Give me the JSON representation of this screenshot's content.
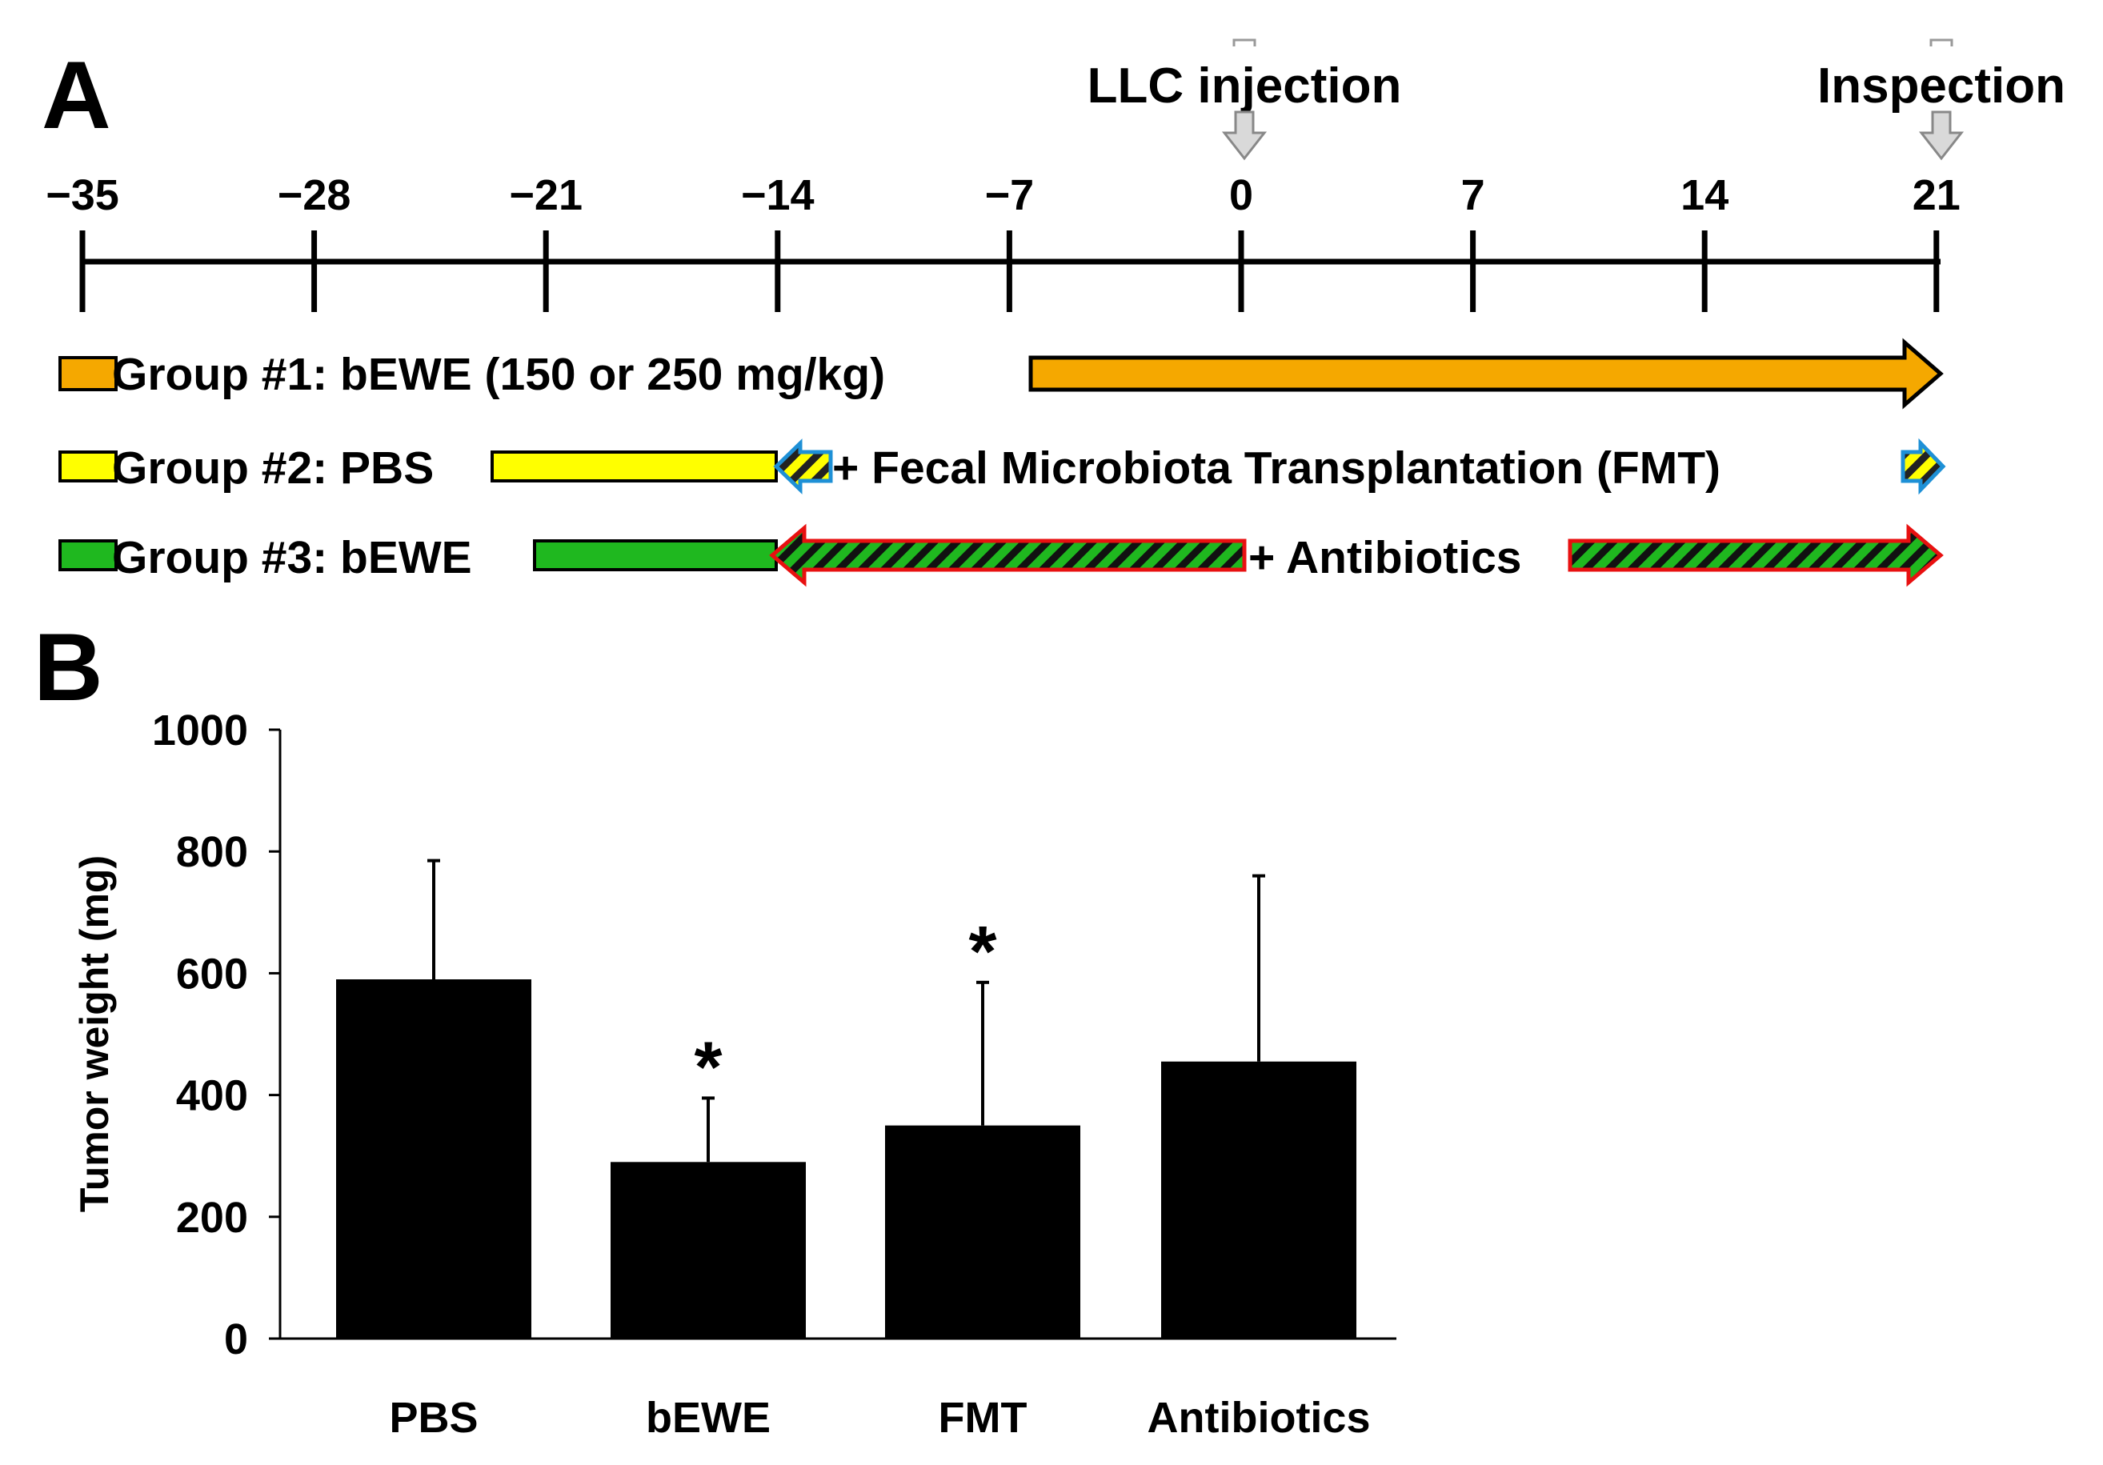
{
  "panel_a": {
    "label": "A",
    "ticks": [
      "−35",
      "−28",
      "−21",
      "−14",
      "−7",
      "0",
      "7",
      "14",
      "21"
    ],
    "events": {
      "injection": "LLC injection",
      "inspection": "Inspection"
    },
    "groups": {
      "g1": "Group #1: bEWE (150 or 250 mg/kg)",
      "g2": "Group #2: PBS",
      "g2_extra": "+ Fecal Microbiota Transplantation (FMT)",
      "g3": "Group #3: bEWE",
      "g3_extra": "+ Antibiotics"
    },
    "colors": {
      "group1": "#f5a800",
      "group2": "#ffff00",
      "group2_outline": "#1e90d6",
      "group3": "#1fb81f",
      "group3_outline": "#e81010",
      "event_arrow": "#d9d9d9"
    }
  },
  "panel_b": {
    "label": "B"
  },
  "chart_data": {
    "type": "bar",
    "categories": [
      "PBS",
      "bEWE",
      "FMT",
      "Antibiotics"
    ],
    "values": [
      590,
      290,
      350,
      455
    ],
    "error_upper": [
      785,
      395,
      585,
      760
    ],
    "significant": [
      false,
      true,
      true,
      false
    ],
    "significance_mark": "*",
    "ylabel": "Tumor weight (mg)",
    "ylim": [
      0,
      1000
    ],
    "yticks": [
      0,
      200,
      400,
      600,
      800,
      1000
    ],
    "bar_color": "#000000",
    "grid": false
  }
}
